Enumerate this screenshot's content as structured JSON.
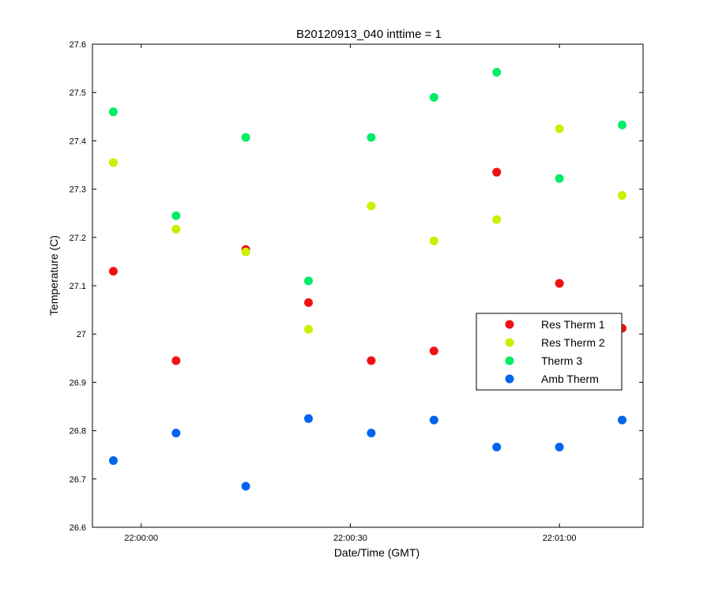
{
  "chart_data": {
    "type": "scatter",
    "title": "B20120913_040 inttime = 1",
    "xlabel": "Date/Time (GMT)",
    "ylabel": "Temperature (C)",
    "xlim": [
      "21:59:53",
      "22:01:12"
    ],
    "ylim": [
      26.6,
      27.6
    ],
    "x_ticks": [
      "22:00:00",
      "22:00:30",
      "22:01:00"
    ],
    "y_ticks": [
      26.6,
      26.7,
      26.8,
      26.9,
      27,
      27.1,
      27.2,
      27.3,
      27.4,
      27.5,
      27.6
    ],
    "grid": false,
    "legend_position": "center-right",
    "x": [
      "21:59:56",
      "22:00:05",
      "22:00:15",
      "22:00:24",
      "22:00:33",
      "22:00:42",
      "22:00:51",
      "22:01:00",
      "22:01:09"
    ],
    "series": [
      {
        "name": "Res Therm 1",
        "color": "#ee1111",
        "values": [
          27.13,
          26.945,
          27.175,
          27.065,
          26.945,
          26.965,
          27.335,
          27.105,
          27.012
        ]
      },
      {
        "name": "Res Therm 2",
        "color": "#ccee00",
        "values": [
          27.355,
          27.217,
          27.17,
          27.01,
          27.265,
          27.193,
          27.237,
          27.425,
          27.287
        ]
      },
      {
        "name": "Therm 3",
        "color": "#00ee66",
        "values": [
          27.46,
          27.245,
          27.407,
          27.11,
          27.407,
          27.49,
          27.542,
          27.322,
          27.433
        ]
      },
      {
        "name": "Amb Therm",
        "color": "#0066ee",
        "values": [
          26.738,
          26.795,
          26.685,
          26.825,
          26.795,
          26.822,
          26.766,
          26.766,
          26.822
        ]
      }
    ]
  }
}
